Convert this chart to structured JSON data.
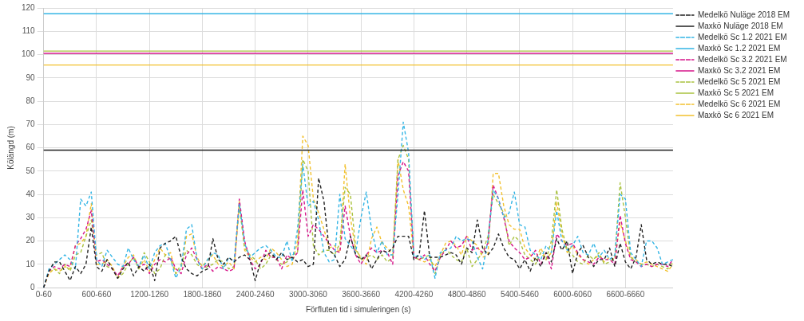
{
  "chart_data": {
    "type": "line",
    "xlabel": "Förfluten tid i simuleringen (s)",
    "ylabel": "Kölängd (m)",
    "categories": [
      "0-60",
      null,
      null,
      null,
      null,
      null,
      null,
      null,
      null,
      null,
      "600-660",
      null,
      null,
      null,
      null,
      null,
      null,
      null,
      null,
      null,
      "1200-1260",
      null,
      null,
      null,
      null,
      null,
      null,
      null,
      null,
      null,
      "1800-1860",
      null,
      null,
      null,
      null,
      null,
      null,
      null,
      null,
      null,
      "2400-2460",
      null,
      null,
      null,
      null,
      null,
      null,
      null,
      null,
      null,
      "3000-3060",
      null,
      null,
      null,
      null,
      null,
      null,
      null,
      null,
      null,
      "3600-3660",
      null,
      null,
      null,
      null,
      null,
      null,
      null,
      null,
      null,
      "4200-4260",
      null,
      null,
      null,
      null,
      null,
      null,
      null,
      null,
      null,
      "4800-4860",
      null,
      null,
      null,
      null,
      null,
      null,
      null,
      null,
      null,
      "5400-5460",
      null,
      null,
      null,
      null,
      null,
      null,
      null,
      null,
      null,
      "6000-6060",
      null,
      null,
      null,
      null,
      null,
      null,
      null,
      null,
      null,
      "6600-6660",
      null,
      null,
      null,
      null,
      null,
      null,
      null,
      null,
      null
    ],
    "ylim": [
      0,
      120
    ],
    "yticks": [
      0,
      10,
      20,
      30,
      40,
      50,
      60,
      70,
      80,
      90,
      100,
      110,
      120
    ],
    "grid": true,
    "legend": "right",
    "series": [
      {
        "name": "Medelkö Nuläge 2018 EM",
        "color": "#222222",
        "line_style": "dashed",
        "values": [
          0,
          7,
          11,
          11,
          7,
          3,
          9,
          6,
          10,
          26,
          9,
          7,
          12,
          8,
          4,
          8,
          11,
          5,
          9,
          7,
          10,
          3,
          17,
          19,
          20,
          22,
          13,
          8,
          6,
          5,
          7,
          8,
          21,
          12,
          10,
          13,
          11,
          13,
          14,
          12,
          3,
          11,
          14,
          15,
          12,
          15,
          12,
          13,
          11,
          12,
          9,
          10,
          47,
          37,
          16,
          14,
          9,
          12,
          22,
          14,
          12,
          14,
          8,
          12,
          16,
          15,
          17,
          22,
          22,
          22,
          12,
          14,
          33,
          13,
          13,
          13,
          14,
          15,
          14,
          10,
          17,
          15,
          29,
          17,
          14,
          17,
          23,
          17,
          13,
          12,
          8,
          12,
          7,
          13,
          9,
          15,
          11,
          21,
          16,
          20,
          6,
          15,
          18,
          13,
          9,
          12,
          12,
          17,
          9,
          19,
          11,
          8,
          13,
          27,
          12,
          10,
          11,
          10,
          10,
          9
        ]
      },
      {
        "name": "Maxkö Nuläge 2018 EM",
        "color": "#222222",
        "line_style": "solid",
        "values": [
          59,
          59,
          59,
          59,
          59,
          59,
          59,
          59,
          59,
          59,
          59,
          59,
          59,
          59,
          59,
          59,
          59,
          59,
          59,
          59,
          59,
          59,
          59,
          59,
          59,
          59,
          59,
          59,
          59,
          59,
          59,
          59,
          59,
          59,
          59,
          59,
          59,
          59,
          59,
          59,
          59,
          59,
          59,
          59,
          59,
          59,
          59,
          59,
          59,
          59,
          59,
          59,
          59,
          59,
          59,
          59,
          59,
          59,
          59,
          59,
          59,
          59,
          59,
          59,
          59,
          59,
          59,
          59,
          59,
          59,
          59,
          59,
          59,
          59,
          59,
          59,
          59,
          59,
          59,
          59,
          59,
          59,
          59,
          59,
          59,
          59,
          59,
          59,
          59,
          59,
          59,
          59,
          59,
          59,
          59,
          59,
          59,
          59,
          59,
          59,
          59,
          59,
          59,
          59,
          59,
          59,
          59,
          59,
          59,
          59,
          59,
          59,
          59,
          59,
          59,
          59,
          59,
          59,
          59,
          59
        ]
      },
      {
        "name": "Medelkö Sc 1.2 2021 EM",
        "color": "#33b5e5",
        "line_style": "dashed",
        "values": [
          0,
          8,
          10,
          12,
          14,
          12,
          8,
          38,
          35,
          41,
          12,
          9,
          16,
          13,
          10,
          9,
          17,
          12,
          9,
          14,
          8,
          15,
          18,
          19,
          12,
          4,
          9,
          25,
          27,
          12,
          8,
          12,
          15,
          14,
          8,
          13,
          11,
          36,
          19,
          13,
          15,
          17,
          18,
          16,
          13,
          13,
          20,
          11,
          25,
          53,
          35,
          37,
          29,
          15,
          11,
          12,
          40,
          21,
          18,
          15,
          30,
          41,
          25,
          15,
          20,
          14,
          14,
          40,
          71,
          58,
          13,
          14,
          12,
          14,
          4,
          15,
          16,
          17,
          22,
          20,
          21,
          20,
          13,
          8,
          20,
          42,
          38,
          30,
          32,
          41,
          27,
          26,
          16,
          14,
          12,
          18,
          15,
          33,
          20,
          16,
          18,
          22,
          15,
          14,
          19,
          13,
          16,
          12,
          14,
          40,
          38,
          15,
          12,
          9,
          20,
          20,
          17,
          10,
          11,
          12
        ]
      },
      {
        "name": "Maxkö Sc 1.2 2021 EM",
        "color": "#33b5e5",
        "line_style": "solid",
        "values": [
          117.5,
          117.5,
          117.5,
          117.5,
          117.5,
          117.5,
          117.5,
          117.5,
          117.5,
          117.5,
          117.5,
          117.5,
          117.5,
          117.5,
          117.5,
          117.5,
          117.5,
          117.5,
          117.5,
          117.5,
          117.5,
          117.5,
          117.5,
          117.5,
          117.5,
          117.5,
          117.5,
          117.5,
          117.5,
          117.5,
          117.5,
          117.5,
          117.5,
          117.5,
          117.5,
          117.5,
          117.5,
          117.5,
          117.5,
          117.5,
          117.5,
          117.5,
          117.5,
          117.5,
          117.5,
          117.5,
          117.5,
          117.5,
          117.5,
          117.5,
          117.5,
          117.5,
          117.5,
          117.5,
          117.5,
          117.5,
          117.5,
          117.5,
          117.5,
          117.5,
          117.5,
          117.5,
          117.5,
          117.5,
          117.5,
          117.5,
          117.5,
          117.5,
          117.5,
          117.5,
          117.5,
          117.5,
          117.5,
          117.5,
          117.5,
          117.5,
          117.5,
          117.5,
          117.5,
          117.5,
          117.5,
          117.5,
          117.5,
          117.5,
          117.5,
          117.5,
          117.5,
          117.5,
          117.5,
          117.5,
          117.5,
          117.5,
          117.5,
          117.5,
          117.5,
          117.5,
          117.5,
          117.5,
          117.5,
          117.5,
          117.5,
          117.5,
          117.5,
          117.5,
          117.5,
          117.5,
          117.5,
          117.5,
          117.5,
          117.5,
          117.5,
          117.5,
          117.5,
          117.5,
          117.5,
          117.5,
          117.5,
          117.5,
          117.5,
          117.5
        ]
      },
      {
        "name": "Medelkö Sc 3.2 2021 EM",
        "color": "#d6168a",
        "line_style": "dashed",
        "values": [
          0,
          7,
          9,
          8,
          10,
          9,
          18,
          21,
          25,
          33,
          11,
          12,
          10,
          8,
          5,
          9,
          10,
          13,
          9,
          10,
          6,
          10,
          12,
          11,
          13,
          8,
          6,
          14,
          17,
          12,
          8,
          10,
          7,
          9,
          8,
          7,
          8,
          38,
          20,
          12,
          8,
          10,
          16,
          13,
          13,
          8,
          14,
          12,
          15,
          42,
          22,
          27,
          25,
          22,
          19,
          16,
          15,
          35,
          22,
          14,
          10,
          14,
          17,
          15,
          16,
          15,
          10,
          48,
          54,
          50,
          13,
          12,
          14,
          10,
          7,
          13,
          16,
          20,
          17,
          18,
          22,
          16,
          17,
          15,
          19,
          44,
          38,
          30,
          20,
          17,
          15,
          12,
          13,
          16,
          10,
          15,
          8,
          23,
          20,
          18,
          19,
          15,
          12,
          11,
          10,
          13,
          12,
          12,
          10,
          31,
          19,
          12,
          11,
          9,
          10,
          9,
          10,
          10,
          9,
          12
        ]
      },
      {
        "name": "Maxkö Sc 3.2 2021 EM",
        "color": "#d6168a",
        "line_style": "solid",
        "values": [
          100.5,
          100.5,
          100.5,
          100.5,
          100.5,
          100.5,
          100.5,
          100.5,
          100.5,
          100.5,
          100.5,
          100.5,
          100.5,
          100.5,
          100.5,
          100.5,
          100.5,
          100.5,
          100.5,
          100.5,
          100.5,
          100.5,
          100.5,
          100.5,
          100.5,
          100.5,
          100.5,
          100.5,
          100.5,
          100.5,
          100.5,
          100.5,
          100.5,
          100.5,
          100.5,
          100.5,
          100.5,
          100.5,
          100.5,
          100.5,
          100.5,
          100.5,
          100.5,
          100.5,
          100.5,
          100.5,
          100.5,
          100.5,
          100.5,
          100.5,
          100.5,
          100.5,
          100.5,
          100.5,
          100.5,
          100.5,
          100.5,
          100.5,
          100.5,
          100.5,
          100.5,
          100.5,
          100.5,
          100.5,
          100.5,
          100.5,
          100.5,
          100.5,
          100.5,
          100.5,
          100.5,
          100.5,
          100.5,
          100.5,
          100.5,
          100.5,
          100.5,
          100.5,
          100.5,
          100.5,
          100.5,
          100.5,
          100.5,
          100.5,
          100.5,
          100.5,
          100.5,
          100.5,
          100.5,
          100.5,
          100.5,
          100.5,
          100.5,
          100.5,
          100.5,
          100.5,
          100.5,
          100.5,
          100.5,
          100.5,
          100.5,
          100.5,
          100.5,
          100.5,
          100.5,
          100.5,
          100.5,
          100.5,
          100.5,
          100.5,
          100.5,
          100.5,
          100.5,
          100.5,
          100.5,
          100.5,
          100.5,
          100.5,
          100.5,
          100.5
        ]
      },
      {
        "name": "Medelkö Sc 5 2021 EM",
        "color": "#a9c23f",
        "line_style": "dashed",
        "values": [
          0,
          7,
          8,
          6,
          10,
          7,
          14,
          15,
          22,
          29,
          14,
          15,
          9,
          8,
          4,
          6,
          10,
          13,
          8,
          15,
          11,
          6,
          8,
          14,
          12,
          6,
          10,
          16,
          14,
          10,
          8,
          9,
          10,
          12,
          11,
          8,
          9,
          35,
          17,
          14,
          12,
          8,
          10,
          14,
          12,
          10,
          11,
          14,
          15,
          55,
          50,
          18,
          14,
          16,
          16,
          14,
          19,
          43,
          40,
          17,
          12,
          13,
          14,
          12,
          14,
          11,
          13,
          55,
          61,
          55,
          13,
          12,
          13,
          14,
          6,
          13,
          17,
          14,
          12,
          11,
          17,
          9,
          12,
          15,
          22,
          40,
          36,
          32,
          18,
          22,
          20,
          14,
          12,
          10,
          15,
          12,
          20,
          42,
          25,
          16,
          14,
          11,
          10,
          14,
          12,
          15,
          10,
          11,
          13,
          45,
          30,
          13,
          11,
          10,
          10,
          9,
          10,
          9,
          8,
          11
        ]
      },
      {
        "name": "Maxkö Sc 5 2021 EM",
        "color": "#a9c23f",
        "line_style": "solid",
        "values": [
          101.5,
          101.5,
          101.5,
          101.5,
          101.5,
          101.5,
          101.5,
          101.5,
          101.5,
          101.5,
          101.5,
          101.5,
          101.5,
          101.5,
          101.5,
          101.5,
          101.5,
          101.5,
          101.5,
          101.5,
          101.5,
          101.5,
          101.5,
          101.5,
          101.5,
          101.5,
          101.5,
          101.5,
          101.5,
          101.5,
          101.5,
          101.5,
          101.5,
          101.5,
          101.5,
          101.5,
          101.5,
          101.5,
          101.5,
          101.5,
          101.5,
          101.5,
          101.5,
          101.5,
          101.5,
          101.5,
          101.5,
          101.5,
          101.5,
          101.5,
          101.5,
          101.5,
          101.5,
          101.5,
          101.5,
          101.5,
          101.5,
          101.5,
          101.5,
          101.5,
          101.5,
          101.5,
          101.5,
          101.5,
          101.5,
          101.5,
          101.5,
          101.5,
          101.5,
          101.5,
          101.5,
          101.5,
          101.5,
          101.5,
          101.5,
          101.5,
          101.5,
          101.5,
          101.5,
          101.5,
          101.5,
          101.5,
          101.5,
          101.5,
          101.5,
          101.5,
          101.5,
          101.5,
          101.5,
          101.5,
          101.5,
          101.5,
          101.5,
          101.5,
          101.5,
          101.5,
          101.5,
          101.5,
          101.5,
          101.5,
          101.5,
          101.5,
          101.5,
          101.5,
          101.5,
          101.5,
          101.5,
          101.5,
          101.5,
          101.5,
          101.5,
          101.5,
          101.5,
          101.5,
          101.5,
          101.5,
          101.5,
          101.5,
          101.5,
          101.5
        ]
      },
      {
        "name": "Medelkö Sc 6 2021 EM",
        "color": "#f2c12e",
        "line_style": "dashed",
        "values": [
          0,
          6,
          8,
          7,
          9,
          8,
          18,
          19,
          22,
          36,
          10,
          10,
          12,
          9,
          4,
          9,
          13,
          14,
          8,
          12,
          7,
          12,
          17,
          14,
          15,
          6,
          8,
          22,
          23,
          13,
          9,
          12,
          14,
          10,
          9,
          11,
          8,
          37,
          16,
          13,
          11,
          13,
          12,
          17,
          15,
          12,
          9,
          10,
          20,
          65,
          61,
          38,
          32,
          25,
          17,
          18,
          15,
          53,
          30,
          16,
          13,
          10,
          21,
          26,
          19,
          17,
          14,
          55,
          42,
          35,
          13,
          12,
          11,
          12,
          9,
          14,
          19,
          20,
          18,
          14,
          22,
          20,
          18,
          13,
          14,
          49,
          49,
          35,
          27,
          25,
          25,
          17,
          14,
          12,
          17,
          12,
          15,
          37,
          23,
          15,
          18,
          14,
          12,
          10,
          12,
          14,
          11,
          13,
          12,
          28,
          20,
          13,
          12,
          10,
          11,
          10,
          9,
          8,
          7,
          10
        ]
      },
      {
        "name": "Maxkö Sc 6 2021 EM",
        "color": "#f2c12e",
        "line_style": "solid",
        "values": [
          95.5,
          95.5,
          95.5,
          95.5,
          95.5,
          95.5,
          95.5,
          95.5,
          95.5,
          95.5,
          95.5,
          95.5,
          95.5,
          95.5,
          95.5,
          95.5,
          95.5,
          95.5,
          95.5,
          95.5,
          95.5,
          95.5,
          95.5,
          95.5,
          95.5,
          95.5,
          95.5,
          95.5,
          95.5,
          95.5,
          95.5,
          95.5,
          95.5,
          95.5,
          95.5,
          95.5,
          95.5,
          95.5,
          95.5,
          95.5,
          95.5,
          95.5,
          95.5,
          95.5,
          95.5,
          95.5,
          95.5,
          95.5,
          95.5,
          95.5,
          95.5,
          95.5,
          95.5,
          95.5,
          95.5,
          95.5,
          95.5,
          95.5,
          95.5,
          95.5,
          95.5,
          95.5,
          95.5,
          95.5,
          95.5,
          95.5,
          95.5,
          95.5,
          95.5,
          95.5,
          95.5,
          95.5,
          95.5,
          95.5,
          95.5,
          95.5,
          95.5,
          95.5,
          95.5,
          95.5,
          95.5,
          95.5,
          95.5,
          95.5,
          95.5,
          95.5,
          95.5,
          95.5,
          95.5,
          95.5,
          95.5,
          95.5,
          95.5,
          95.5,
          95.5,
          95.5,
          95.5,
          95.5,
          95.5,
          95.5,
          95.5,
          95.5,
          95.5,
          95.5,
          95.5,
          95.5,
          95.5,
          95.5,
          95.5,
          95.5,
          95.5,
          95.5,
          95.5,
          95.5,
          95.5,
          95.5,
          95.5,
          95.5,
          95.5,
          95.5
        ]
      }
    ]
  }
}
